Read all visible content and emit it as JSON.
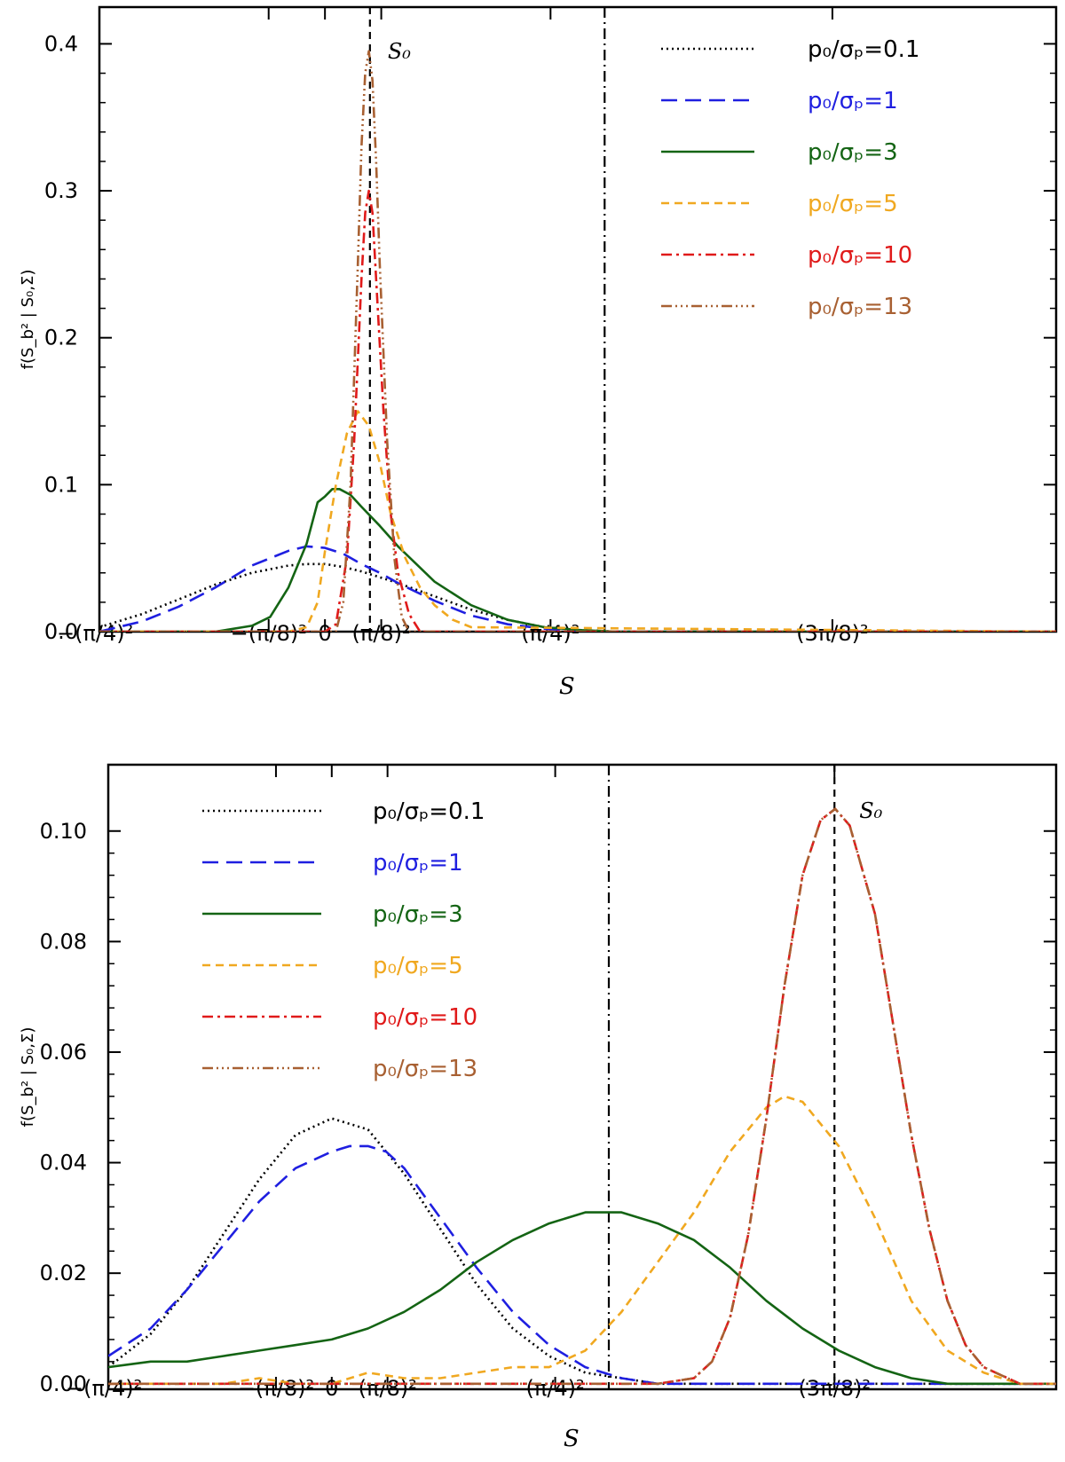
{
  "chart_data": [
    {
      "type": "line",
      "panel": "top",
      "xlabel": "S",
      "ylabel": "f(S_b² | S₀,Σ)",
      "ylim": [
        0.0,
        0.425
      ],
      "xlim": [
        -0.617,
        2.0
      ],
      "xticks": [
        {
          "value": -0.617,
          "label": "−(π/4)²"
        },
        {
          "value": -0.154,
          "label": "−(π/8)²"
        },
        {
          "value": 0.0,
          "label": "0"
        },
        {
          "value": 0.154,
          "label": "(π/8)²"
        },
        {
          "value": 0.617,
          "label": "(π/4)²"
        },
        {
          "value": 1.388,
          "label": "(3π/8)²"
        }
      ],
      "yticks": [
        {
          "value": 0.0,
          "label": "0.0"
        },
        {
          "value": 0.1,
          "label": "0.1"
        },
        {
          "value": 0.2,
          "label": "0.2"
        },
        {
          "value": 0.3,
          "label": "0.3"
        },
        {
          "value": 0.4,
          "label": "0.4"
        }
      ],
      "vlines": [
        {
          "x": 0.123,
          "style": "dashed",
          "label": "S₀"
        },
        {
          "x": 0.765,
          "style": "dashdot"
        }
      ],
      "legend_position": "top-right",
      "series": [
        {
          "name": "p₀/σₚ=0.1",
          "color": "#000000",
          "dash": "2,4",
          "x": [
            -0.617,
            -0.5,
            -0.4,
            -0.3,
            -0.2,
            -0.1,
            -0.05,
            0,
            0.05,
            0.1,
            0.2,
            0.3,
            0.4,
            0.5,
            0.6,
            0.7,
            0.8,
            2.0
          ],
          "y": [
            0.003,
            0.012,
            0.022,
            0.032,
            0.04,
            0.045,
            0.046,
            0.046,
            0.044,
            0.041,
            0.033,
            0.024,
            0.015,
            0.008,
            0.003,
            0.001,
            0.0,
            0.0
          ]
        },
        {
          "name": "p₀/σₚ=1",
          "color": "#1f1fe0",
          "dash": "18,9",
          "x": [
            -0.617,
            -0.5,
            -0.4,
            -0.3,
            -0.2,
            -0.1,
            -0.05,
            0,
            0.05,
            0.1,
            0.15,
            0.2,
            0.3,
            0.4,
            0.5,
            0.6,
            0.7,
            0.8,
            2.0
          ],
          "y": [
            0.0,
            0.007,
            0.017,
            0.03,
            0.045,
            0.055,
            0.058,
            0.057,
            0.053,
            0.046,
            0.04,
            0.033,
            0.021,
            0.011,
            0.005,
            0.002,
            0.0,
            0.0,
            0.0
          ]
        },
        {
          "name": "p₀/σₚ=3",
          "color": "#146414",
          "dash": "",
          "x": [
            -0.617,
            -0.3,
            -0.2,
            -0.15,
            -0.1,
            -0.05,
            -0.02,
            0,
            0.02,
            0.04,
            0.07,
            0.1,
            0.15,
            0.2,
            0.3,
            0.4,
            0.5,
            0.6,
            0.7,
            0.8,
            2.0
          ],
          "y": [
            0.0,
            0.0,
            0.004,
            0.01,
            0.03,
            0.06,
            0.088,
            0.092,
            0.097,
            0.097,
            0.093,
            0.085,
            0.072,
            0.058,
            0.034,
            0.018,
            0.008,
            0.003,
            0.001,
            0.0,
            0.0
          ]
        },
        {
          "name": "p₀/σₚ=5",
          "color": "#f0a820",
          "dash": "9,6",
          "x": [
            -0.617,
            -0.1,
            -0.05,
            -0.02,
            0,
            0.03,
            0.06,
            0.09,
            0.12,
            0.15,
            0.18,
            0.22,
            0.26,
            0.3,
            0.35,
            0.4,
            2.0
          ],
          "y": [
            0.0,
            0.0,
            0.003,
            0.02,
            0.055,
            0.1,
            0.135,
            0.15,
            0.14,
            0.115,
            0.08,
            0.05,
            0.03,
            0.018,
            0.008,
            0.003,
            0.0
          ]
        },
        {
          "name": "p₀/σₚ=10",
          "color": "#e01a1a",
          "dash": "12,5,3,5",
          "x": [
            -0.617,
            0.0,
            0.03,
            0.06,
            0.08,
            0.1,
            0.11,
            0.12,
            0.13,
            0.14,
            0.16,
            0.18,
            0.2,
            0.23,
            0.26,
            2.0
          ],
          "y": [
            0.0,
            0.0,
            0.005,
            0.05,
            0.13,
            0.24,
            0.285,
            0.3,
            0.285,
            0.24,
            0.15,
            0.08,
            0.04,
            0.012,
            0.0,
            0.0
          ]
        },
        {
          "name": "p₀/σₚ=13",
          "color": "#a86032",
          "dash": "12,4,2,4,2,4,2,4",
          "x": [
            -0.617,
            0.03,
            0.05,
            0.07,
            0.09,
            0.1,
            0.11,
            0.12,
            0.13,
            0.14,
            0.15,
            0.17,
            0.19,
            0.21,
            0.23,
            2.0
          ],
          "y": [
            0.0,
            0.0,
            0.02,
            0.1,
            0.25,
            0.33,
            0.38,
            0.395,
            0.375,
            0.32,
            0.25,
            0.13,
            0.05,
            0.01,
            0.0,
            0.0
          ]
        }
      ]
    },
    {
      "type": "line",
      "panel": "bottom",
      "xlabel": "S",
      "ylabel": "f(S_b² | S₀,Σ)",
      "ylim": [
        -0.001,
        0.112
      ],
      "xlim": [
        -0.617,
        2.0
      ],
      "xticks": [
        {
          "value": -0.617,
          "label": "−(π/4)²"
        },
        {
          "value": -0.154,
          "label": "−(π/8)²"
        },
        {
          "value": 0.0,
          "label": "0"
        },
        {
          "value": 0.154,
          "label": "(π/8)²"
        },
        {
          "value": 0.617,
          "label": "(π/4)²"
        },
        {
          "value": 1.388,
          "label": "(3π/8)²"
        }
      ],
      "yticks": [
        {
          "value": 0.0,
          "label": "0.00"
        },
        {
          "value": 0.02,
          "label": "0.02"
        },
        {
          "value": 0.04,
          "label": "0.04"
        },
        {
          "value": 0.06,
          "label": "0.06"
        },
        {
          "value": 0.08,
          "label": "0.08"
        },
        {
          "value": 0.1,
          "label": "0.10"
        }
      ],
      "vlines": [
        {
          "x": 1.388,
          "style": "dashed",
          "label": "S₀"
        },
        {
          "x": 0.765,
          "style": "dashdot"
        }
      ],
      "legend_position": "top-left",
      "series": [
        {
          "name": "p₀/σₚ=0.1",
          "color": "#000000",
          "dash": "2,4",
          "x": [
            -0.617,
            -0.5,
            -0.4,
            -0.3,
            -0.2,
            -0.1,
            0,
            0.1,
            0.2,
            0.3,
            0.4,
            0.5,
            0.6,
            0.7,
            0.8,
            0.9,
            1.0,
            1.1,
            2.0
          ],
          "y": [
            0.003,
            0.009,
            0.017,
            0.027,
            0.037,
            0.045,
            0.048,
            0.046,
            0.038,
            0.028,
            0.018,
            0.01,
            0.005,
            0.002,
            0.001,
            0.0,
            0.0,
            0.0,
            0.0
          ]
        },
        {
          "name": "p₀/σₚ=1",
          "color": "#1f1fe0",
          "dash": "18,9",
          "x": [
            -0.617,
            -0.5,
            -0.4,
            -0.3,
            -0.2,
            -0.1,
            0,
            0.05,
            0.1,
            0.15,
            0.2,
            0.3,
            0.4,
            0.5,
            0.6,
            0.7,
            0.8,
            0.9,
            1.0,
            1.1,
            2.0
          ],
          "y": [
            0.005,
            0.01,
            0.017,
            0.025,
            0.033,
            0.039,
            0.042,
            0.043,
            0.043,
            0.042,
            0.039,
            0.03,
            0.021,
            0.013,
            0.007,
            0.003,
            0.001,
            0.0,
            0.0,
            0.0,
            0.0
          ]
        },
        {
          "name": "p₀/σₚ=3",
          "color": "#146414",
          "dash": "",
          "x": [
            -0.617,
            -0.5,
            -0.4,
            -0.3,
            -0.2,
            -0.1,
            0,
            0.1,
            0.2,
            0.3,
            0.4,
            0.5,
            0.6,
            0.7,
            0.8,
            0.9,
            1.0,
            1.1,
            1.2,
            1.3,
            1.4,
            1.5,
            1.6,
            1.7,
            2.0
          ],
          "y": [
            0.003,
            0.004,
            0.004,
            0.005,
            0.006,
            0.007,
            0.008,
            0.01,
            0.013,
            0.017,
            0.022,
            0.026,
            0.029,
            0.031,
            0.031,
            0.029,
            0.026,
            0.021,
            0.015,
            0.01,
            0.006,
            0.003,
            0.001,
            0.0,
            0.0
          ]
        },
        {
          "name": "p₀/σₚ=5",
          "color": "#f0a820",
          "dash": "9,6",
          "x": [
            -0.617,
            -0.3,
            -0.2,
            -0.1,
            0,
            0.1,
            0.2,
            0.3,
            0.4,
            0.5,
            0.6,
            0.7,
            0.8,
            0.9,
            1.0,
            1.1,
            1.2,
            1.25,
            1.3,
            1.4,
            1.5,
            1.6,
            1.7,
            1.8,
            1.9,
            2.0
          ],
          "y": [
            0.0,
            0.0,
            0.001,
            0.0,
            0.0,
            0.002,
            0.001,
            0.001,
            0.002,
            0.003,
            0.003,
            0.006,
            0.013,
            0.022,
            0.031,
            0.042,
            0.05,
            0.052,
            0.051,
            0.043,
            0.03,
            0.015,
            0.006,
            0.002,
            0.0,
            0.0
          ]
        },
        {
          "name": "p₀/σₚ=10",
          "color": "#e01a1a",
          "dash": "12,5,3,5",
          "x": [
            -0.617,
            0.9,
            1.0,
            1.05,
            1.1,
            1.15,
            1.2,
            1.25,
            1.3,
            1.35,
            1.39,
            1.43,
            1.5,
            1.55,
            1.6,
            1.65,
            1.7,
            1.75,
            1.8,
            1.9,
            2.0
          ],
          "y": [
            0.0,
            0.0,
            0.001,
            0.004,
            0.012,
            0.027,
            0.048,
            0.072,
            0.092,
            0.102,
            0.104,
            0.101,
            0.085,
            0.065,
            0.045,
            0.028,
            0.015,
            0.007,
            0.003,
            0.0,
            0.0
          ]
        },
        {
          "name": "p₀/σₚ=13",
          "color": "#a86032",
          "dash": "12,4,2,4,2,4,2,4",
          "x": [
            -0.617,
            0.9,
            1.0,
            1.05,
            1.1,
            1.15,
            1.2,
            1.25,
            1.3,
            1.35,
            1.39,
            1.43,
            1.5,
            1.55,
            1.6,
            1.65,
            1.7,
            1.75,
            1.8,
            1.9,
            2.0
          ],
          "y": [
            0.0,
            0.0,
            0.001,
            0.004,
            0.012,
            0.027,
            0.048,
            0.072,
            0.092,
            0.102,
            0.104,
            0.101,
            0.085,
            0.065,
            0.045,
            0.028,
            0.015,
            0.007,
            0.003,
            0.0,
            0.0
          ]
        }
      ]
    }
  ]
}
